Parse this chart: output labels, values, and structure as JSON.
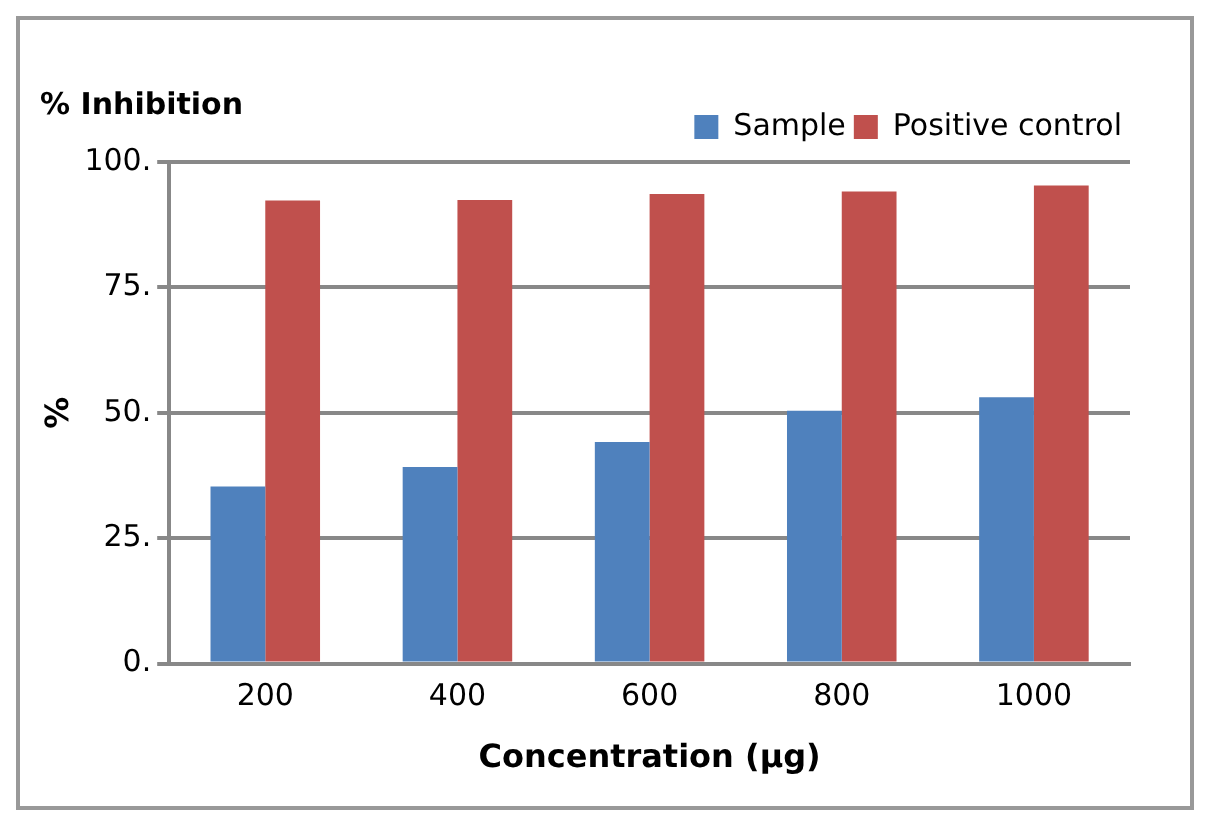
{
  "chart_data": {
    "type": "bar",
    "title": "% Inhibition",
    "xlabel": "Concentration (µg)",
    "ylabel": "%",
    "categories": [
      "200",
      "400",
      "600",
      "800",
      "1000"
    ],
    "series": [
      {
        "name": "Sample",
        "color": "#4f81bd",
        "values": [
          35.3,
          39.2,
          44.2,
          50.4,
          53.1
        ]
      },
      {
        "name": "Positive control",
        "color": "#c0504d",
        "values": [
          92.3,
          92.4,
          93.6,
          94.1,
          95.3
        ]
      }
    ],
    "ylim": [
      0,
      100
    ],
    "yticks": [
      {
        "value": 0,
        "label": "0."
      },
      {
        "value": 25,
        "label": "25."
      },
      {
        "value": 50,
        "label": "50."
      },
      {
        "value": 75,
        "label": "75."
      },
      {
        "value": 100,
        "label": "100."
      }
    ],
    "grid": "y",
    "legend": "top right"
  }
}
